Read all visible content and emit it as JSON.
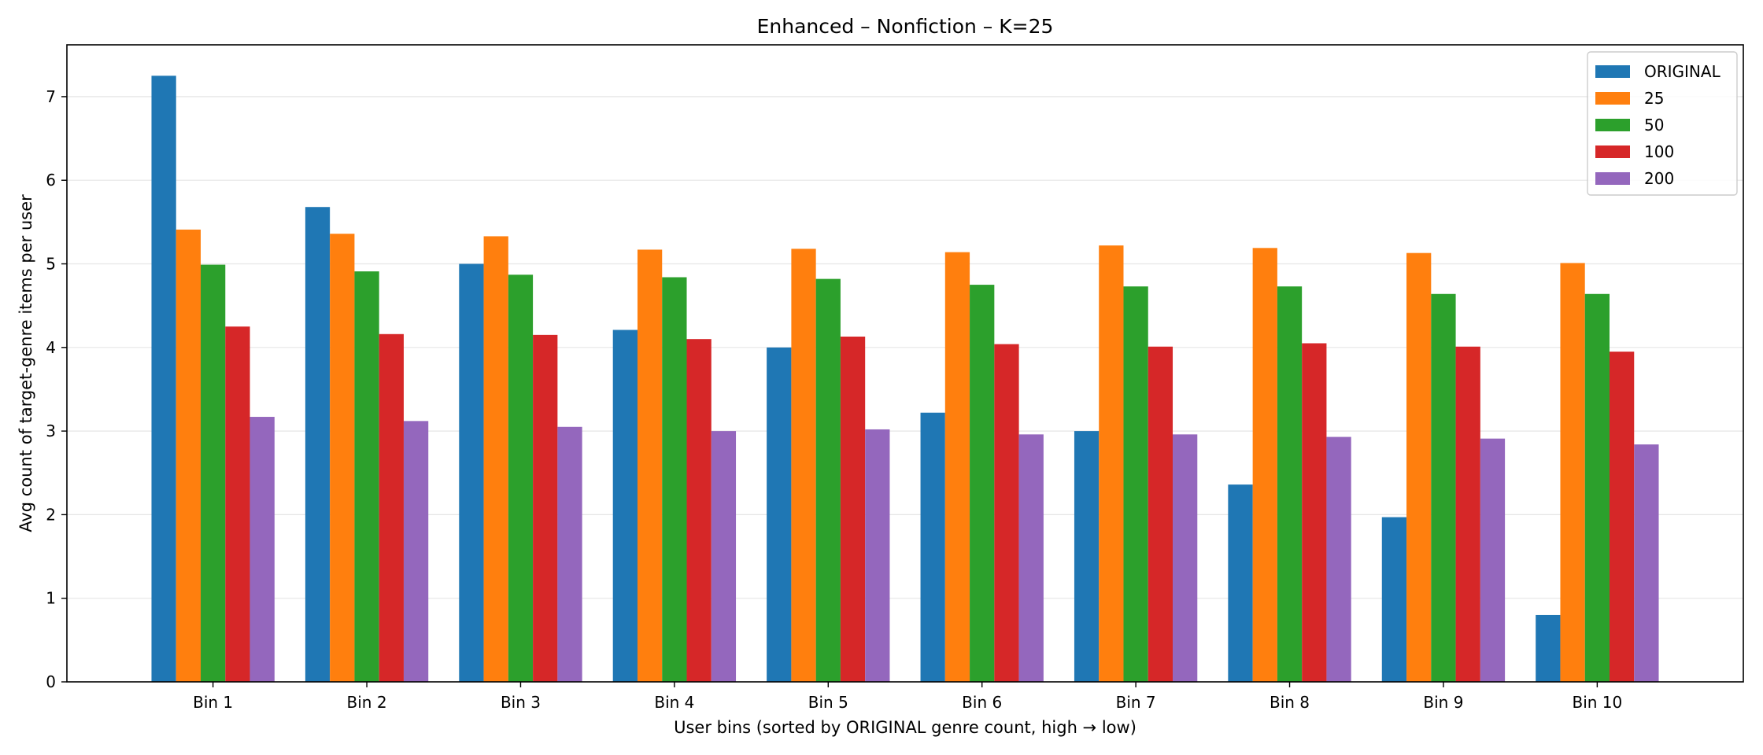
{
  "chart_data": {
    "type": "bar",
    "title": "Enhanced – Nonfiction – K=25",
    "xlabel": "User bins (sorted by ORIGINAL genre count, high → low)",
    "ylabel": "Avg count of target-genre items per user",
    "categories": [
      "Bin 1",
      "Bin 2",
      "Bin 3",
      "Bin 4",
      "Bin 5",
      "Bin 6",
      "Bin 7",
      "Bin 8",
      "Bin 9",
      "Bin 10"
    ],
    "ylim": [
      0,
      7.62
    ],
    "yticks": [
      0,
      1,
      2,
      3,
      4,
      5,
      6,
      7
    ],
    "grid": "y",
    "legend_position": "top-right",
    "series": [
      {
        "name": "ORIGINAL",
        "color": "#1f77b4",
        "values": [
          7.25,
          5.68,
          5.0,
          4.21,
          4.0,
          3.22,
          3.0,
          2.36,
          1.97,
          0.8
        ]
      },
      {
        "name": "25",
        "color": "#ff7f0e",
        "values": [
          5.41,
          5.36,
          5.33,
          5.17,
          5.18,
          5.14,
          5.22,
          5.19,
          5.13,
          5.01
        ]
      },
      {
        "name": "50",
        "color": "#2ca02c",
        "values": [
          4.99,
          4.91,
          4.87,
          4.84,
          4.82,
          4.75,
          4.73,
          4.73,
          4.64,
          4.64
        ]
      },
      {
        "name": "100",
        "color": "#d62728",
        "values": [
          4.25,
          4.16,
          4.15,
          4.1,
          4.13,
          4.04,
          4.01,
          4.05,
          4.01,
          3.95
        ]
      },
      {
        "name": "200",
        "color": "#9467bd",
        "values": [
          3.17,
          3.12,
          3.05,
          3.0,
          3.02,
          2.96,
          2.96,
          2.93,
          2.91,
          2.84
        ]
      }
    ]
  }
}
